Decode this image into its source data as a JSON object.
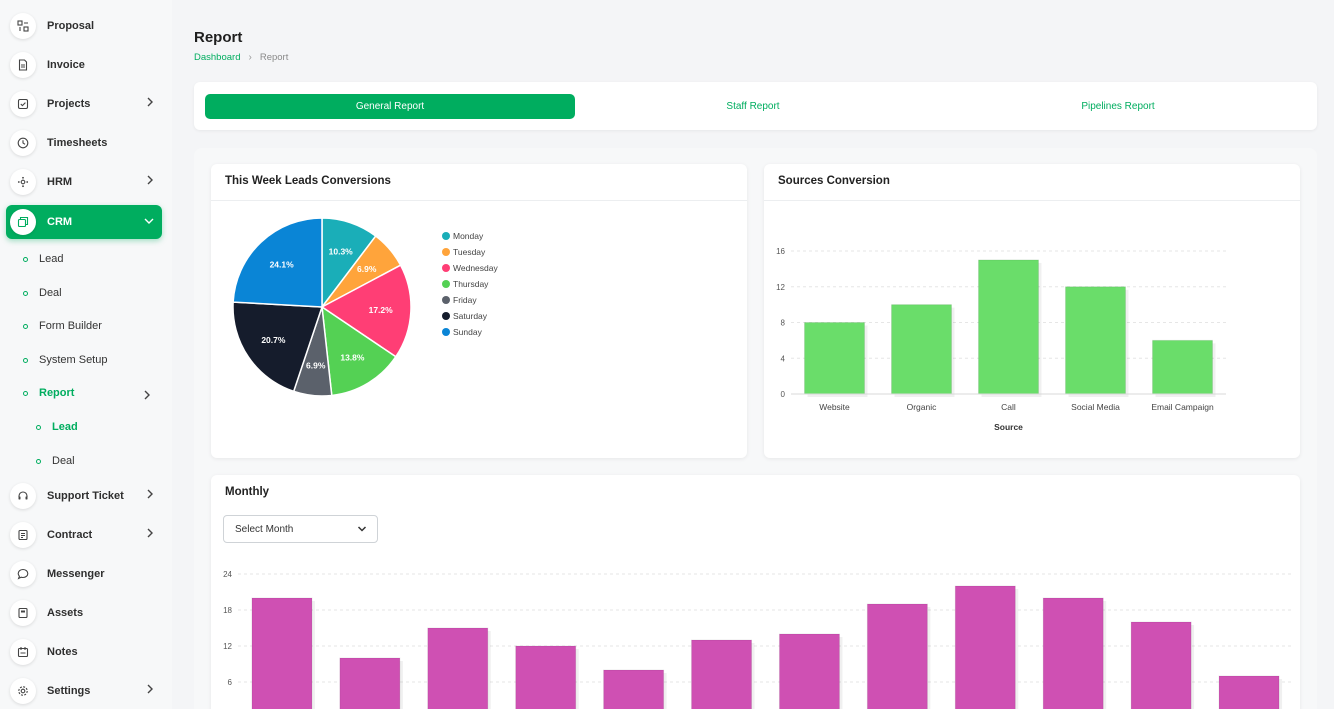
{
  "sidebar": {
    "items": [
      {
        "label": "Proposal",
        "icon": "proposal-icon"
      },
      {
        "label": "Invoice",
        "icon": "invoice-icon"
      },
      {
        "label": "Projects",
        "icon": "projects-icon"
      },
      {
        "label": "Timesheets",
        "icon": "clock-icon"
      },
      {
        "label": "HRM",
        "icon": "hrm-icon"
      },
      {
        "label": "CRM",
        "icon": "crm-icon"
      },
      {
        "label": "Support Ticket",
        "icon": "headset-icon"
      },
      {
        "label": "Contract",
        "icon": "contract-icon"
      },
      {
        "label": "Messenger",
        "icon": "chat-icon"
      },
      {
        "label": "Assets",
        "icon": "assets-icon"
      },
      {
        "label": "Notes",
        "icon": "notes-icon"
      },
      {
        "label": "Settings",
        "icon": "gear-icon"
      }
    ],
    "crm_sub": [
      "Lead",
      "Deal",
      "Form Builder",
      "System Setup",
      "Report"
    ],
    "report_sub": [
      "Lead",
      "Deal"
    ]
  },
  "header": {
    "title": "Report",
    "breadcrumb": [
      "Dashboard",
      "Report"
    ]
  },
  "tabs": [
    "General Report",
    "Staff Report",
    "Pipelines Report"
  ],
  "cards": {
    "leads": {
      "title": "This Week Leads Conversions"
    },
    "sources": {
      "title": "Sources Conversion"
    },
    "monthly": {
      "title": "Monthly",
      "select_placeholder": "Select Month"
    }
  },
  "colors": {
    "accent": "#00ad5f",
    "bar_green": "#6add6a",
    "bar_magenta": "#cf50b3"
  },
  "chart_data": [
    {
      "type": "pie",
      "title": "This Week Leads Conversions",
      "categories": [
        "Monday",
        "Tuesday",
        "Wednesday",
        "Thursday",
        "Friday",
        "Saturday",
        "Sunday"
      ],
      "values": [
        10.3,
        6.9,
        17.2,
        13.8,
        6.9,
        20.7,
        24.1
      ],
      "labels": [
        "10.3%",
        "6.9%",
        "17.2%",
        "13.8%",
        "6.9%",
        "20.7%",
        "24.1%"
      ],
      "colors": [
        "#1aaeb8",
        "#ffa43b",
        "#ff3e75",
        "#54d154",
        "#5b616b",
        "#151c2c",
        "#0a85d6"
      ],
      "legend": "right"
    },
    {
      "type": "bar",
      "title": "Sources Conversion",
      "categories": [
        "Website",
        "Organic",
        "Call",
        "Social Media",
        "Email Campaign"
      ],
      "values": [
        8,
        10,
        15,
        12,
        6
      ],
      "xlabel": "Source",
      "ylabel": "",
      "ylim": [
        0,
        16
      ],
      "yticks": [
        "0",
        "4",
        "8",
        "12",
        "16"
      ],
      "grid": true
    },
    {
      "type": "bar",
      "title": "Monthly",
      "values": [
        20,
        10,
        15,
        12,
        8,
        13,
        14,
        19,
        22,
        20,
        16,
        7
      ],
      "ylim": [
        0,
        24
      ],
      "yticks": [
        "6",
        "12",
        "18",
        "24"
      ],
      "grid": true
    }
  ]
}
